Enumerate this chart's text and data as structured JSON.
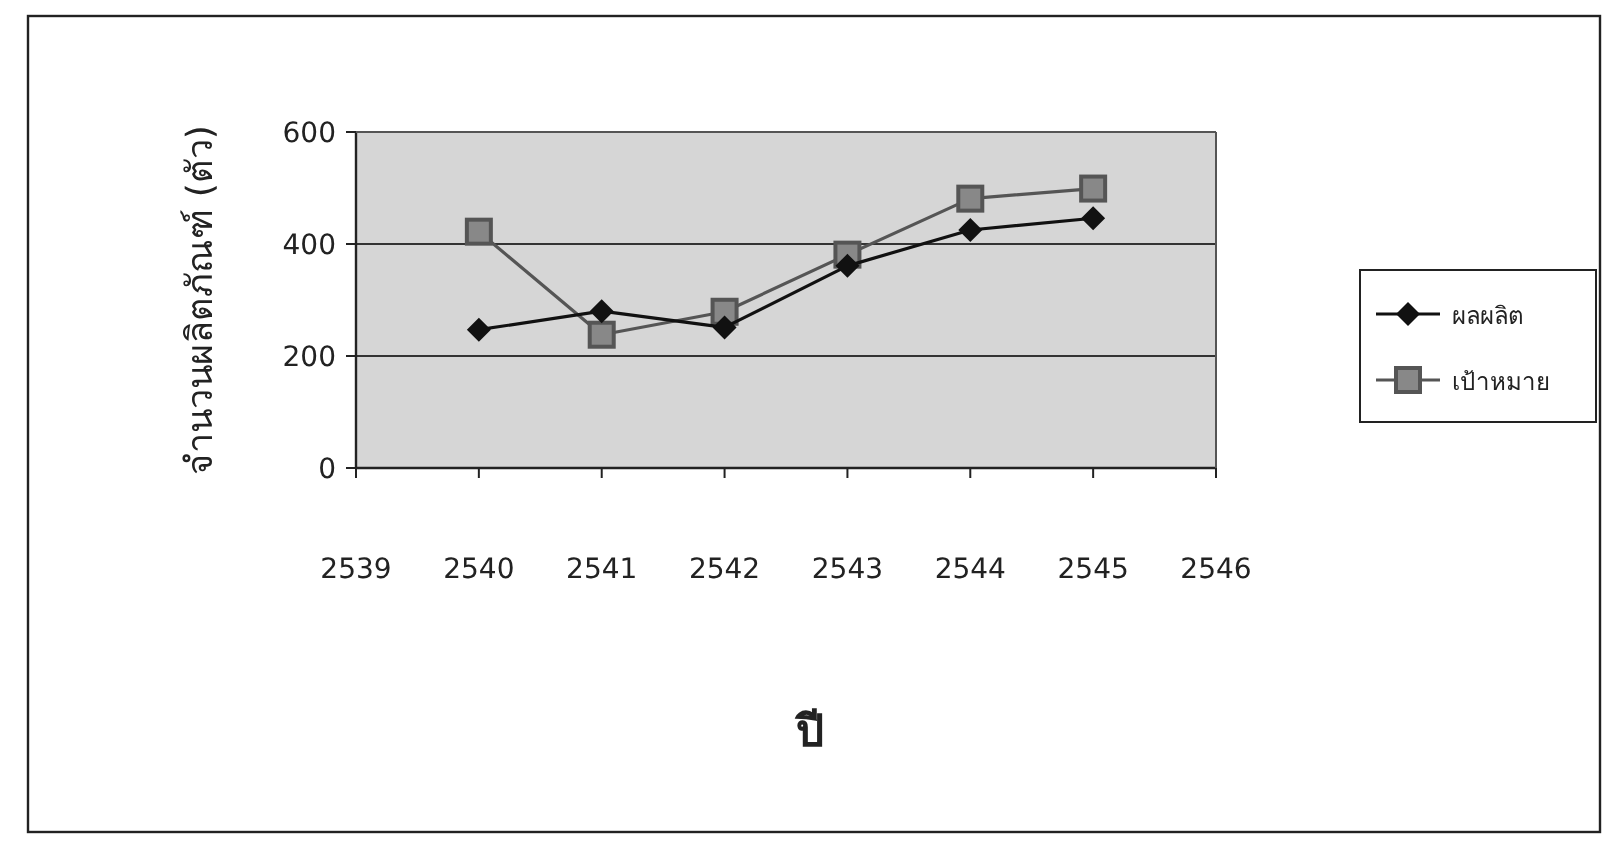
{
  "chart_data": {
    "type": "line",
    "xlabel": "ปี",
    "ylabel": "จำนวนผลิตภัณฑ์ (ตัว)",
    "x": [
      2540,
      2541,
      2542,
      2543,
      2544,
      2545
    ],
    "series": [
      {
        "name": "ผลผลิต",
        "color": "#111111",
        "marker": "diamond",
        "values": [
          247,
          280,
          251,
          361,
          425,
          446
        ]
      },
      {
        "name": "เป้าหมาย",
        "color": "#555555",
        "marker": "square",
        "values": [
          422,
          238,
          279,
          381,
          481,
          499
        ]
      }
    ],
    "xlim": [
      2539,
      2546
    ],
    "xticks": [
      2539,
      2540,
      2541,
      2542,
      2543,
      2544,
      2545,
      2546
    ],
    "ylim": [
      0,
      600
    ],
    "yticks": [
      0,
      200,
      400,
      600
    ],
    "grid": "y",
    "legend": "right"
  }
}
